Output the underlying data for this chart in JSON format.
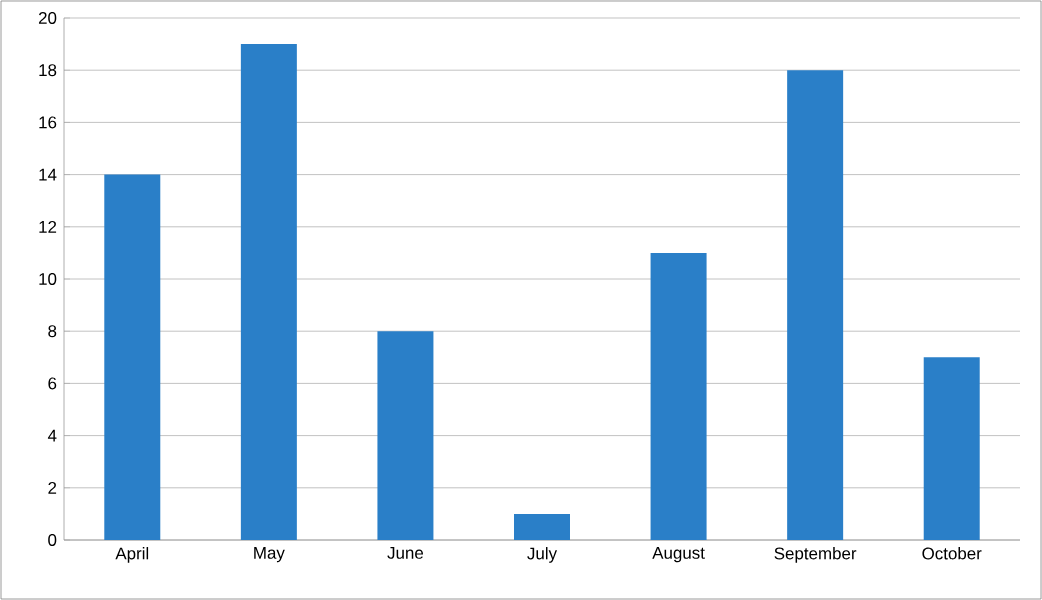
{
  "chart_data": {
    "type": "bar",
    "categories": [
      "April",
      "May",
      "June",
      "July",
      "August",
      "September",
      "October"
    ],
    "values": [
      14,
      19,
      8,
      1,
      11,
      18,
      7
    ],
    "color": "#2a7fc8",
    "ylim": [
      0,
      20
    ],
    "yticks": [
      0,
      2,
      4,
      6,
      8,
      10,
      12,
      14,
      16,
      18,
      20
    ],
    "grid": "y"
  }
}
